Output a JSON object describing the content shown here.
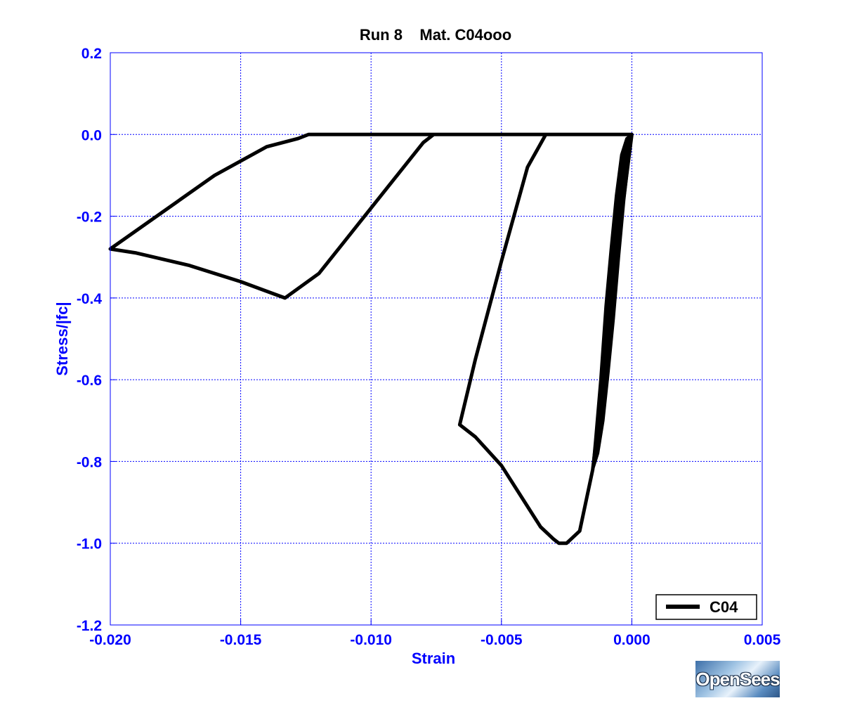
{
  "chart_data": {
    "type": "line",
    "title": "Run 8    Mat. C04ooo",
    "xlabel": "Strain",
    "ylabel": "Stress/|fc|",
    "xlim": [
      -0.02,
      0.005
    ],
    "ylim": [
      -1.2,
      0.2
    ],
    "xticks": [
      -0.02,
      -0.015,
      -0.01,
      -0.005,
      0.0,
      0.005
    ],
    "xtick_labels": [
      "-0.020",
      "-0.015",
      "-0.010",
      "-0.005",
      "0.000",
      "0.005"
    ],
    "yticks": [
      0.2,
      0.0,
      -0.2,
      -0.4,
      -0.6,
      -0.8,
      -1.0,
      -1.2
    ],
    "ytick_labels": [
      "0.2",
      "0.0",
      "-0.2",
      "-0.4",
      "-0.6",
      "-0.8",
      "-1.0",
      "-1.2"
    ],
    "grid": true,
    "legend_position": "bottom-right",
    "series": [
      {
        "name": "C04",
        "color": "#000000",
        "x": [
          0.0,
          -0.0005,
          -0.001,
          -0.0015,
          -0.002,
          -0.0025,
          -0.0028,
          -0.003,
          -0.0035,
          -0.004,
          -0.005,
          -0.006,
          -0.0066,
          -0.0066,
          -0.006,
          -0.005,
          -0.004,
          -0.0033,
          -0.0031,
          -0.003,
          -0.005,
          -0.0076,
          -0.0076,
          -0.008,
          -0.009,
          -0.01,
          -0.011,
          -0.012,
          -0.0133,
          -0.0133,
          -0.015,
          -0.017,
          -0.019,
          -0.02,
          -0.02,
          -0.018,
          -0.016,
          -0.014,
          -0.0128,
          -0.0124,
          -0.012,
          -0.01,
          -0.005,
          -0.001,
          0.0
        ],
        "y": [
          0.0,
          -0.25,
          -0.55,
          -0.82,
          -0.97,
          -1.0,
          -1.0,
          -0.99,
          -0.96,
          -0.91,
          -0.81,
          -0.74,
          -0.71,
          -0.71,
          -0.55,
          -0.31,
          -0.08,
          0.0,
          0.0,
          0.0,
          0.0,
          0.0,
          0.0,
          -0.02,
          -0.1,
          -0.18,
          -0.26,
          -0.34,
          -0.4,
          -0.4,
          -0.36,
          -0.32,
          -0.29,
          -0.28,
          -0.28,
          -0.19,
          -0.1,
          -0.03,
          -0.01,
          0.0,
          0.0,
          0.0,
          0.0,
          0.0,
          0.0
        ]
      },
      {
        "name": "",
        "color": "#000000",
        "x": [
          -0.0015,
          -0.0014,
          -0.0012,
          -0.001,
          -0.0008,
          -0.0006,
          -0.0004,
          -0.0002,
          0.0,
          -0.0001,
          -0.0003,
          -0.0005,
          -0.0007,
          -0.0009,
          -0.0011,
          -0.0013,
          -0.0015
        ],
        "y": [
          -0.82,
          -0.75,
          -0.6,
          -0.42,
          -0.28,
          -0.15,
          -0.05,
          -0.01,
          0.0,
          -0.05,
          -0.16,
          -0.3,
          -0.45,
          -0.58,
          -0.7,
          -0.78,
          -0.82
        ]
      }
    ],
    "legend": [
      "C04"
    ]
  },
  "logo_text": "OpenSees"
}
